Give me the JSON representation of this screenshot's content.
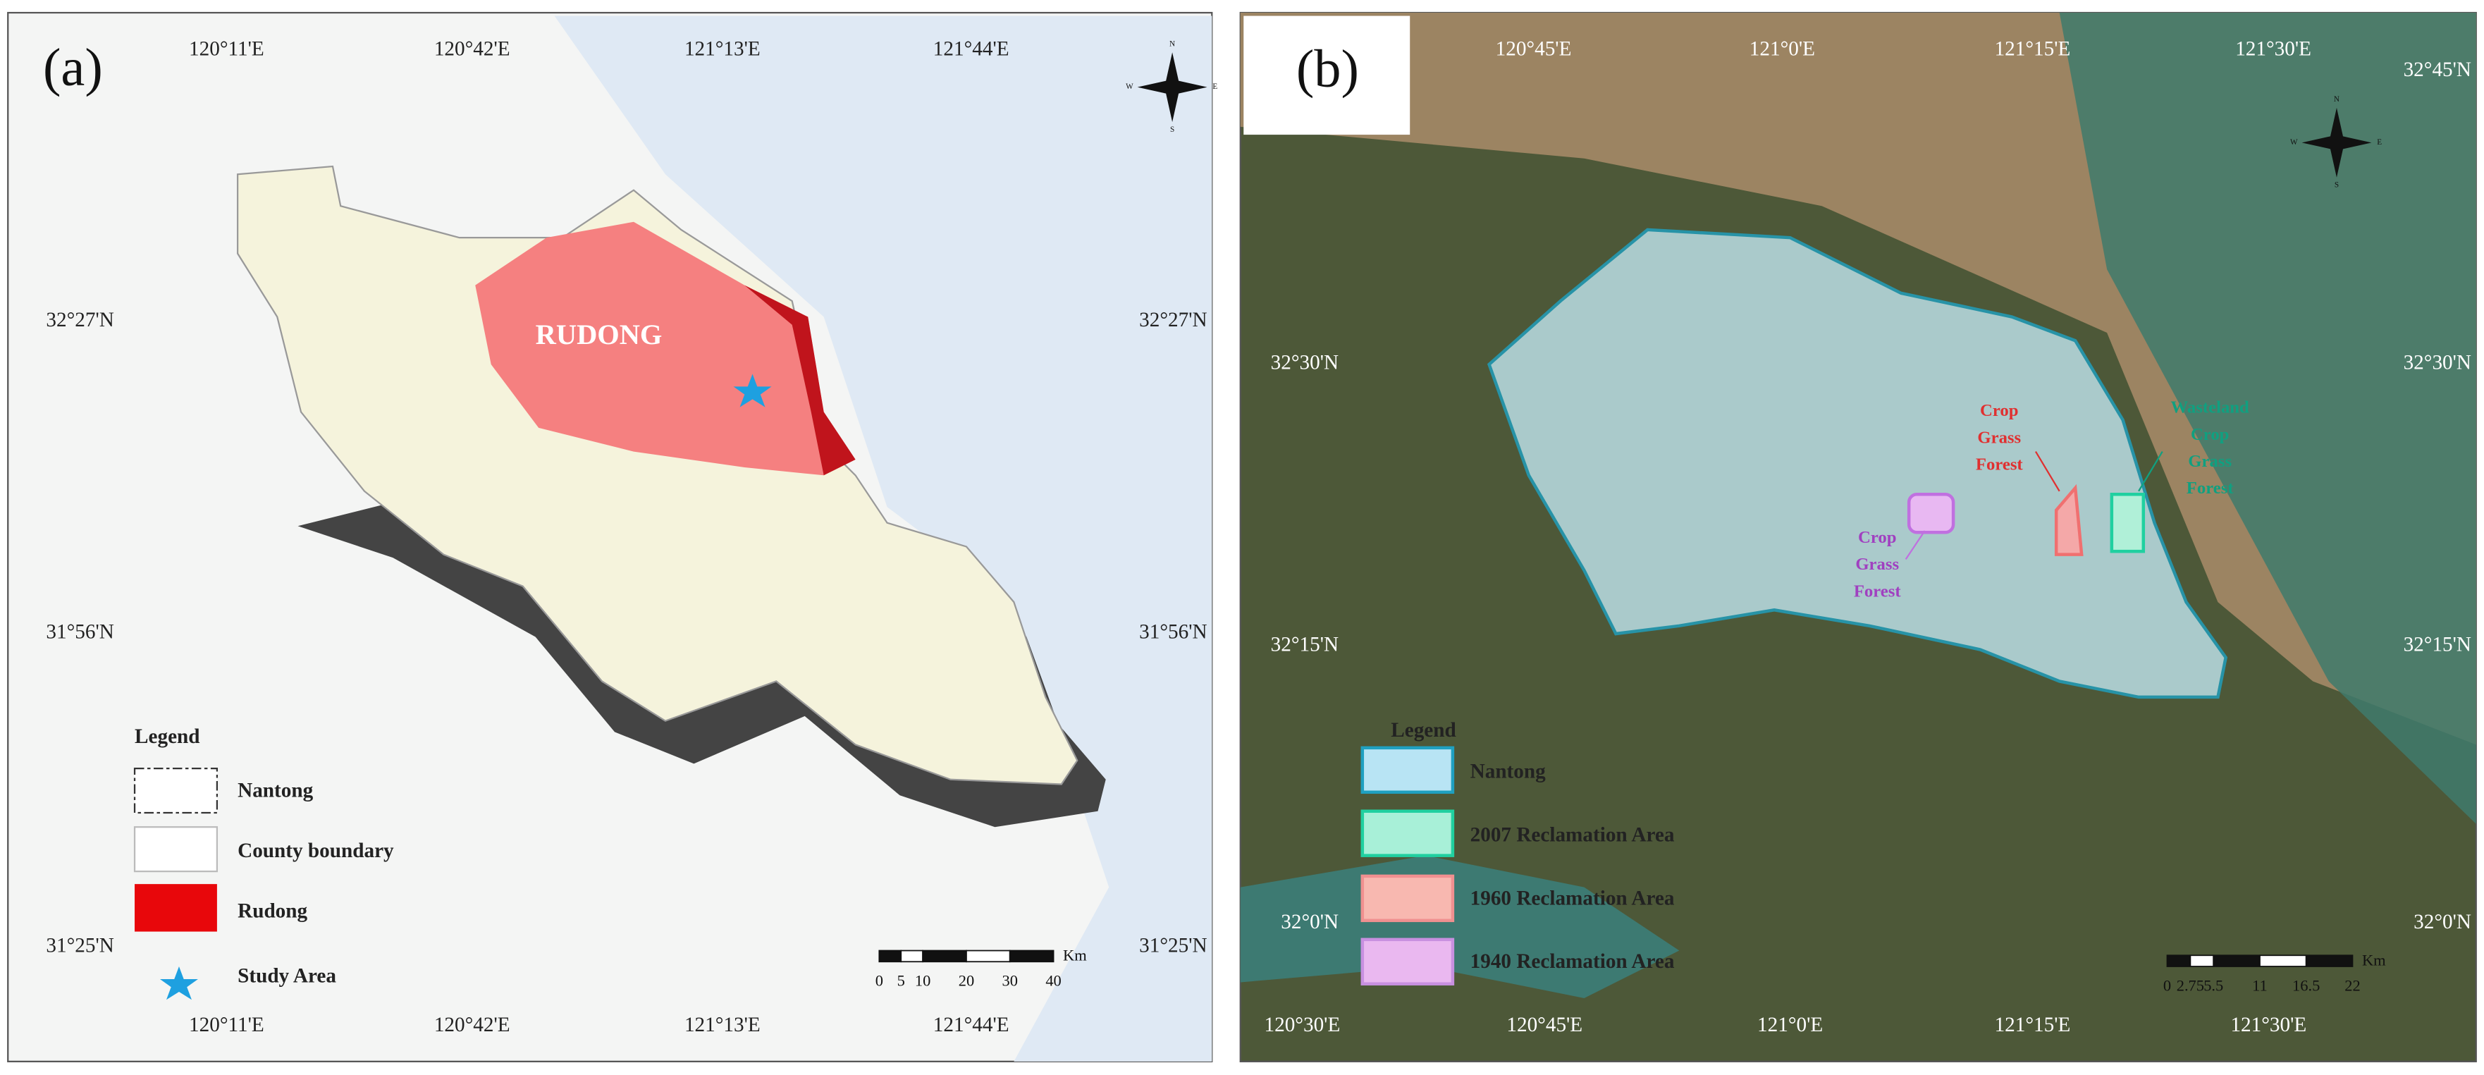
{
  "panels": [
    {
      "label": "(a)",
      "top_ticks": [
        "120°11'E",
        "120°42'E",
        "121°13'E",
        "121°44'E"
      ],
      "bottom_ticks": [
        "120°11'E",
        "120°42'E",
        "121°13'E",
        "121°44'E"
      ],
      "left_ticks": [
        "32°27'N",
        "31°56'N",
        "31°25'N"
      ],
      "right_ticks": [
        "32°27'N",
        "31°56'N",
        "31°25'N"
      ],
      "region_label": "RUDONG",
      "compass": [
        "N",
        "E",
        "S",
        "W"
      ],
      "legend": {
        "title": "Legend",
        "items": [
          "Nantong",
          "County boundary",
          "Rudong",
          "Study Area"
        ]
      },
      "scale": {
        "ticks": [
          0,
          5,
          10,
          20,
          30,
          40
        ],
        "unit": "Km"
      }
    },
    {
      "label": "(b)",
      "top_ticks": [
        "120°45'E",
        "121°0'E",
        "121°15'E",
        "121°30'E"
      ],
      "bottom_ticks": [
        "120°30'E",
        "120°45'E",
        "121°0'E",
        "121°15'E",
        "121°30'E"
      ],
      "left_ticks": [
        "32°30'N",
        "32°15'N",
        "32°0'N"
      ],
      "right_ticks": [
        "32°45'N",
        "32°30'N",
        "32°15'N",
        "32°0'N"
      ],
      "compass": [
        "N",
        "E",
        "S",
        "W"
      ],
      "annotations": [
        [
          "Crop",
          "Grass",
          "Forest"
        ],
        [
          "Crop",
          "Grass",
          "Forest"
        ],
        [
          "Wasteland",
          "Crop",
          "Grass",
          "Forest"
        ]
      ],
      "legend": {
        "title": "Legend",
        "items": [
          "Nantong",
          "2007 Reclamation Area",
          "1960 Reclamation Area",
          "1940 Reclamation Area"
        ]
      },
      "scale": {
        "ticks": [
          0,
          2.75,
          5.5,
          11,
          16.5,
          22
        ],
        "unit": "Km"
      }
    }
  ]
}
